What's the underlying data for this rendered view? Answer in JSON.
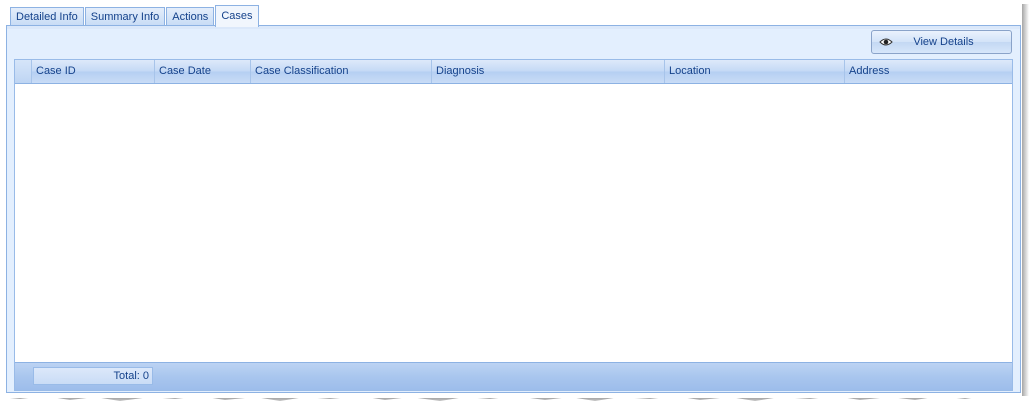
{
  "tabs": [
    {
      "label": "Detailed Info",
      "active": false
    },
    {
      "label": "Summary Info",
      "active": false
    },
    {
      "label": "Actions",
      "active": false
    },
    {
      "label": "Cases",
      "active": true
    }
  ],
  "toolbar": {
    "view_details_label": "View Details",
    "view_details_icon": "eye-icon"
  },
  "grid": {
    "columns": [
      "Case ID",
      "Case Date",
      "Case Classification",
      "Diagnosis",
      "Location",
      "Address"
    ],
    "rows": [],
    "footer_total": "Total: 0"
  },
  "colors": {
    "accent": "#15428b",
    "panel": "#e3effe",
    "border": "#8db2e3"
  }
}
